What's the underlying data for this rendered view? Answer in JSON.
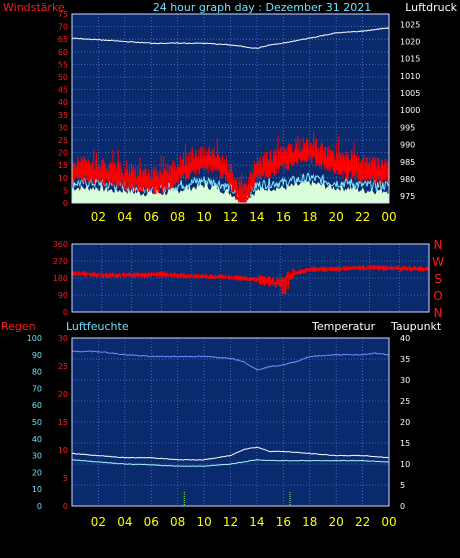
{
  "header": {
    "left_label": "Windstärke",
    "title": "24 hour graph day : Dezember 31 2021",
    "right_label": "Luftdruck"
  },
  "panel2_labels": {
    "dirs": [
      "N",
      "W",
      "S",
      "O",
      "N"
    ]
  },
  "panel3_header": {
    "regen": "Regen",
    "luftfeuchte": "Luftfeuchte",
    "temperatur": "Temperatur",
    "taupunkt": "Taupunkt"
  },
  "colors": {
    "plot_bg": "#0a2a6e",
    "grid": "#4a78d8",
    "label_red": "#ff1a1a",
    "label_yellow": "#ffff00",
    "label_white": "#ffffff",
    "label_cyan": "#6fe0ff",
    "wind_red": "#ff0000",
    "gust_cyan": "#80e8ff",
    "wind_fill": "#d8ffd8"
  },
  "chart_data": [
    {
      "id": "wind_pressure",
      "type": "line",
      "x_ticks": [
        "02",
        "04",
        "06",
        "08",
        "10",
        "12",
        "14",
        "16",
        "18",
        "20",
        "22",
        "00"
      ],
      "left_axis": {
        "ticks": [
          0,
          5,
          10,
          15,
          20,
          25,
          30,
          35,
          40,
          45,
          50,
          55,
          60,
          65,
          70,
          75
        ],
        "ylim": [
          0,
          75
        ]
      },
      "right_axis": {
        "ticks": [
          975,
          980,
          985,
          990,
          995,
          1000,
          1005,
          1010,
          1015,
          1020,
          1025
        ],
        "ylim": [
          973,
          1028
        ]
      },
      "series": [
        {
          "role": "pressure",
          "axis": "right",
          "x": [
            0,
            2,
            4,
            6,
            8,
            10,
            12,
            13,
            14,
            15,
            16,
            18,
            20,
            22,
            24
          ],
          "values": [
            1021,
            1020.5,
            1020,
            1019.5,
            1019.5,
            1019.5,
            1019,
            1018.5,
            1018,
            1019,
            1019.5,
            1021,
            1022.5,
            1023,
            1024
          ]
        },
        {
          "role": "wind_max",
          "axis": "left",
          "x": [
            0,
            1,
            2,
            3,
            4,
            5,
            6,
            7,
            8,
            9,
            10,
            11,
            12,
            12.5,
            13,
            14,
            15,
            16,
            17,
            18,
            19,
            20,
            21,
            22,
            23,
            24
          ],
          "values": [
            14,
            15,
            14,
            13,
            12,
            11,
            10,
            11,
            14,
            17,
            19,
            18,
            13,
            7,
            4,
            15,
            17,
            19,
            21,
            23,
            20,
            17,
            16,
            15,
            14,
            14
          ]
        },
        {
          "role": "wind_avg",
          "axis": "left",
          "x": [
            0,
            1,
            2,
            3,
            4,
            5,
            6,
            7,
            8,
            9,
            10,
            11,
            12,
            12.5,
            13,
            14,
            15,
            16,
            17,
            18,
            19,
            20,
            21,
            22,
            23,
            24
          ],
          "values": [
            6,
            6,
            6,
            5,
            5,
            4,
            4,
            4,
            5,
            6,
            7,
            6,
            4,
            2,
            1,
            5,
            6,
            6,
            7,
            8,
            7,
            6,
            6,
            5,
            5,
            5
          ]
        },
        {
          "role": "wind_gust",
          "axis": "left",
          "x": [
            0,
            1,
            2,
            3,
            4,
            5,
            6,
            7,
            8,
            9,
            10,
            11,
            12,
            12.5,
            13,
            14,
            15,
            16,
            17,
            18,
            19,
            20,
            21,
            22,
            23,
            24
          ],
          "values": [
            8,
            8,
            8,
            7,
            7,
            6,
            6,
            6,
            7,
            8,
            9,
            8,
            6,
            3,
            2,
            7,
            8,
            8,
            9,
            10,
            9,
            8,
            8,
            7,
            7,
            7
          ]
        }
      ]
    },
    {
      "id": "wind_direction",
      "type": "line",
      "y_ticks": [
        0,
        90,
        180,
        270,
        360
      ],
      "ylim": [
        0,
        360
      ],
      "series": [
        {
          "role": "direction",
          "x": [
            0,
            2,
            4,
            6,
            8,
            10,
            12,
            13,
            14,
            14.5,
            15,
            16,
            18,
            20,
            22,
            24
          ],
          "values": [
            205,
            195,
            195,
            200,
            190,
            185,
            175,
            165,
            150,
            185,
            205,
            225,
            230,
            235,
            230,
            228
          ]
        }
      ]
    },
    {
      "id": "humidity_temp",
      "type": "line",
      "left_axis": {
        "ticks": [
          0,
          10,
          20,
          30,
          40,
          50,
          60,
          70,
          80,
          90,
          100
        ],
        "ylim": [
          0,
          100
        ]
      },
      "inner_axis": {
        "ticks": [
          0,
          5,
          10,
          15,
          20,
          25,
          30
        ],
        "ylim": [
          0,
          30
        ]
      },
      "right_axis": {
        "ticks": [
          0,
          5,
          10,
          15,
          20,
          25,
          30,
          35,
          40
        ],
        "ylim": [
          0,
          40
        ]
      },
      "x_ticks": [
        "02",
        "04",
        "06",
        "08",
        "10",
        "12",
        "14",
        "16",
        "18",
        "20",
        "22",
        "00"
      ],
      "rain_marks_x": [
        8.5,
        16.5
      ],
      "series": [
        {
          "role": "humidity",
          "axis": "left",
          "x": [
            0,
            2,
            4,
            6,
            8,
            10,
            12,
            13,
            14,
            14.5,
            15,
            16,
            17,
            18,
            20,
            22,
            23,
            24
          ],
          "values": [
            92,
            92,
            90,
            89,
            89,
            89,
            88,
            86,
            81,
            82,
            83,
            84,
            86,
            89,
            90,
            90,
            91,
            90
          ]
        },
        {
          "role": "temperature",
          "axis": "right",
          "x": [
            0,
            2,
            4,
            6,
            8,
            10,
            12,
            13,
            14,
            15,
            16,
            18,
            20,
            22,
            24
          ],
          "values": [
            12.5,
            12,
            11.5,
            11.5,
            11,
            11,
            12,
            13.5,
            14,
            13,
            13,
            12.5,
            12,
            12,
            11.5
          ]
        },
        {
          "role": "dewpoint",
          "axis": "right",
          "x": [
            0,
            2,
            4,
            6,
            8,
            10,
            12,
            13,
            14,
            15,
            16,
            18,
            20,
            22,
            24
          ],
          "values": [
            11,
            10.5,
            10,
            9.8,
            9.5,
            9.5,
            10,
            10.5,
            11,
            10.8,
            10.8,
            10.8,
            10.8,
            10.8,
            10.5
          ]
        }
      ]
    }
  ]
}
